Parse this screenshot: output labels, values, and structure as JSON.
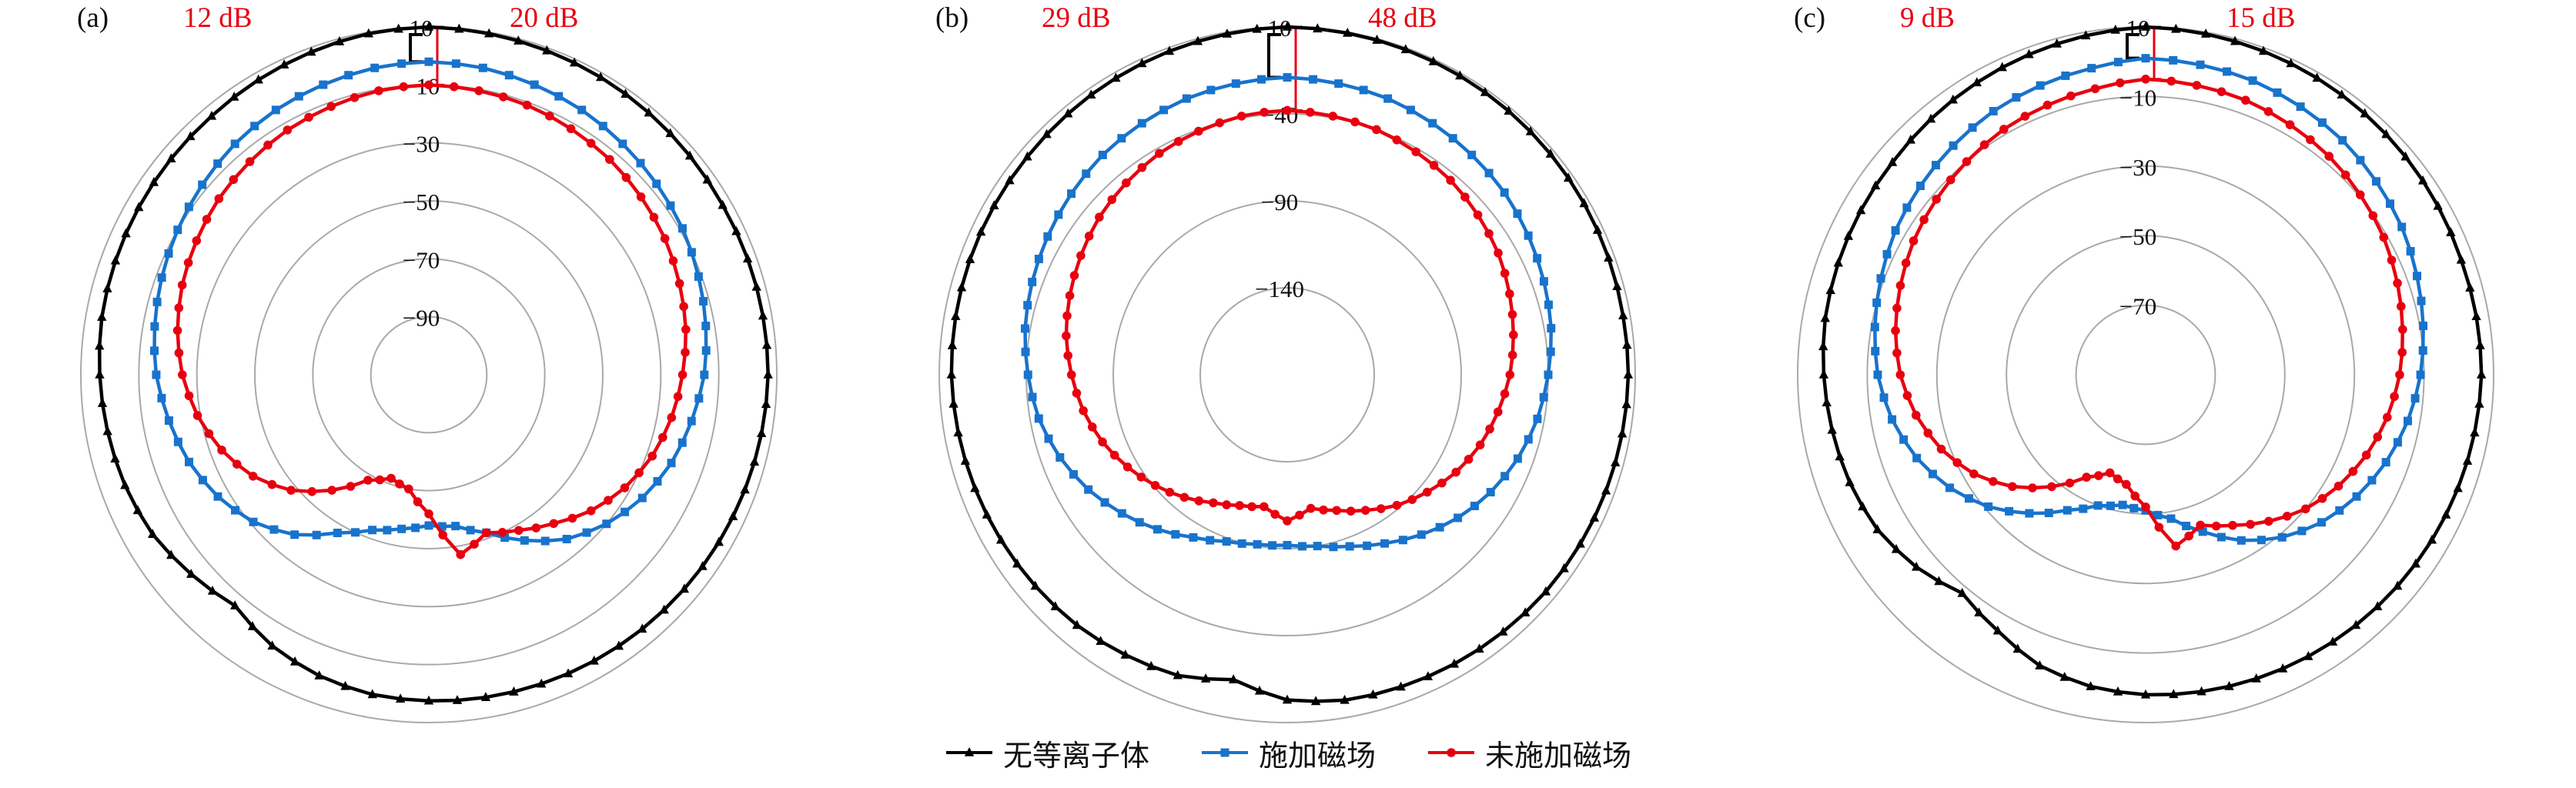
{
  "style": {
    "grid_color": "#a9a9a9",
    "text_color": "#111111",
    "annotation_red": "#e8000f",
    "series_black": "#000000",
    "series_blue": "#1873cc",
    "series_red": "#e8000f"
  },
  "legend": {
    "items": [
      {
        "label": "无等离子体",
        "marker": "triangle",
        "color": "#000000"
      },
      {
        "label": "施加磁场",
        "marker": "square",
        "color": "#1873cc"
      },
      {
        "label": "未施加磁场",
        "marker": "circle",
        "color": "#e8000f"
      }
    ]
  },
  "chart_data": [
    {
      "type": "line",
      "subtype": "polar-radiation-pattern",
      "panel_label": "(a)",
      "annotations": {
        "left_db": "12 dB",
        "right_db": "20 dB"
      },
      "angle_start_deg": 0,
      "angle_step_deg": 10,
      "angle_direction": "clockwise-from-top",
      "axis": {
        "unit": "dB",
        "vmax": 10,
        "vmin": -110,
        "rings": [
          {
            "value": 10,
            "label": "10"
          },
          {
            "value": -10,
            "label": "−10"
          },
          {
            "value": -30,
            "label": "−30"
          },
          {
            "value": -50,
            "label": "−50"
          },
          {
            "value": -70,
            "label": "−70"
          },
          {
            "value": -90,
            "label": "−90"
          }
        ]
      },
      "series": [
        {
          "name": "无等离子体",
          "marker": "triangle",
          "color": "#000000",
          "values": [
            10,
            9.5,
            9,
            8.5,
            8,
            7.5,
            7,
            7,
            7,
            7,
            6.5,
            6,
            5.5,
            5,
            4.5,
            4,
            3.5,
            3,
            2.5,
            2,
            0.5,
            -2,
            -6,
            -3,
            0,
            1.5,
            2.5,
            3.5,
            4.5,
            5,
            5.5,
            6,
            6.5,
            7.5,
            8.5,
            9.5
          ]
        },
        {
          "name": "施加磁场",
          "marker": "square",
          "color": "#1873cc",
          "values": [
            -2,
            -2.5,
            -3.5,
            -4.5,
            -6,
            -7.5,
            -9,
            -11,
            -13,
            -15,
            -18,
            -21,
            -25,
            -30,
            -36,
            -44,
            -52,
            -57,
            -58,
            -56,
            -53,
            -47,
            -38,
            -31,
            -26,
            -22,
            -19,
            -16,
            -14,
            -12,
            -10,
            -8,
            -6,
            -4.5,
            -3.5,
            -2.5
          ]
        },
        {
          "name": "未施加磁场",
          "marker": "circle",
          "color": "#e8000f",
          "values": [
            -10,
            -10.5,
            -11,
            -12,
            -13,
            -14.5,
            -16,
            -18,
            -20,
            -22.5,
            -25,
            -28,
            -32,
            -37,
            -43,
            -48,
            -52,
            -47,
            -62,
            -70,
            -72,
            -68,
            -58,
            -48,
            -40,
            -34,
            -29,
            -25,
            -22,
            -19.5,
            -17.5,
            -15.5,
            -14,
            -12.5,
            -11.5,
            -10.5
          ]
        }
      ]
    },
    {
      "type": "line",
      "subtype": "polar-radiation-pattern",
      "panel_label": "(b)",
      "annotations": {
        "left_db": "29 dB",
        "right_db": "48 dB"
      },
      "angle_start_deg": 0,
      "angle_step_deg": 10,
      "angle_direction": "clockwise-from-top",
      "axis": {
        "unit": "dB",
        "vmax": 10,
        "vmin": -190,
        "rings": [
          {
            "value": 10,
            "label": "10"
          },
          {
            "value": -40,
            "label": "−40"
          },
          {
            "value": -90,
            "label": "−90"
          },
          {
            "value": -140,
            "label": "−140"
          }
        ]
      },
      "series": [
        {
          "name": "无等离子体",
          "marker": "triangle",
          "color": "#000000",
          "values": [
            10,
            9.5,
            9,
            8.5,
            8,
            7.5,
            7,
            6.5,
            6,
            6,
            5.5,
            5,
            4.5,
            4,
            3,
            2,
            1,
            0,
            -3,
            -12,
            -6,
            -4,
            -2,
            -1,
            0,
            1,
            2,
            3,
            3.5,
            4,
            4.5,
            5,
            6,
            7,
            8,
            9
          ]
        },
        {
          "name": "施加磁场",
          "marker": "square",
          "color": "#1873cc",
          "values": [
            -19,
            -20,
            -21,
            -23,
            -25,
            -27,
            -30,
            -33,
            -36,
            -40,
            -44,
            -49,
            -55,
            -62,
            -70,
            -78,
            -85,
            -90,
            -92,
            -91,
            -88,
            -82,
            -74,
            -66,
            -58,
            -51,
            -45,
            -41,
            -37,
            -34,
            -31,
            -28,
            -25,
            -23,
            -21,
            -20
          ]
        },
        {
          "name": "未施加磁场",
          "marker": "circle",
          "color": "#e8000f",
          "values": [
            -38,
            -39,
            -40,
            -42,
            -44,
            -47,
            -50,
            -54,
            -58,
            -62,
            -67,
            -72,
            -78,
            -85,
            -92,
            -100,
            -107,
            -112,
            -106,
            -113,
            -110,
            -105,
            -98,
            -91,
            -84,
            -77,
            -71,
            -66,
            -61,
            -57,
            -53,
            -49,
            -46,
            -43,
            -41,
            -39
          ]
        }
      ]
    },
    {
      "type": "line",
      "subtype": "polar-radiation-pattern",
      "panel_label": "(c)",
      "annotations": {
        "left_db": "9 dB",
        "right_db": "15 dB"
      },
      "angle_start_deg": 0,
      "angle_step_deg": 10,
      "angle_direction": "clockwise-from-top",
      "axis": {
        "unit": "dB",
        "vmax": 10,
        "vmin": -90,
        "rings": [
          {
            "value": 10,
            "label": "10"
          },
          {
            "value": -10,
            "label": "−10"
          },
          {
            "value": -30,
            "label": "−30"
          },
          {
            "value": -50,
            "label": "−50"
          },
          {
            "value": -70,
            "label": "−70"
          }
        ]
      },
      "series": [
        {
          "name": "无等离子体",
          "marker": "triangle",
          "color": "#000000",
          "values": [
            10,
            9.5,
            9,
            8.5,
            8,
            7.5,
            7,
            6.5,
            6.5,
            6.5,
            6,
            5.5,
            5,
            4.5,
            4,
            3.5,
            3,
            2.5,
            2,
            1,
            -1,
            -5,
            -8,
            -4,
            -1,
            0.5,
            1.5,
            2.5,
            3.5,
            4,
            4.5,
            5,
            6,
            7,
            8,
            9
          ]
        },
        {
          "name": "施加磁场",
          "marker": "square",
          "color": "#1873cc",
          "values": [
            1,
            0.5,
            0,
            -1,
            -2,
            -3.5,
            -5,
            -7,
            -9,
            -11,
            -13.5,
            -16.5,
            -20,
            -24,
            -29,
            -35,
            -42,
            -48,
            -51,
            -52,
            -50,
            -45,
            -38,
            -31,
            -25,
            -20,
            -16,
            -13,
            -11,
            -9,
            -7,
            -5.5,
            -4,
            -2.5,
            -1.5,
            -0.5
          ]
        },
        {
          "name": "未施加磁场",
          "marker": "circle",
          "color": "#e8000f",
          "values": [
            -5,
            -5.5,
            -6,
            -7,
            -8,
            -9.5,
            -11,
            -13,
            -15,
            -17,
            -19.5,
            -22.5,
            -26,
            -30,
            -35,
            -40,
            -44,
            -40,
            -52,
            -58,
            -60,
            -56,
            -48,
            -40,
            -33,
            -27.5,
            -23,
            -19.5,
            -17,
            -15,
            -13,
            -11.5,
            -10,
            -8.5,
            -7.5,
            -6.5
          ]
        }
      ]
    }
  ]
}
